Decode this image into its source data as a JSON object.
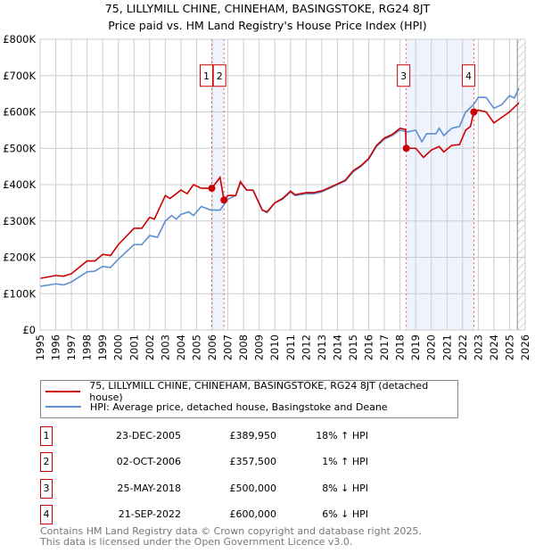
{
  "header": {
    "title": "75, LILLYMILL CHINE, CHINEHAM, BASINGSTOKE, RG24 8JT",
    "subtitle": "Price paid vs. HM Land Registry's House Price Index (HPI)"
  },
  "chart_data": {
    "type": "line",
    "title": "75, LILLYMILL CHINE, CHINEHAM, BASINGSTOKE, RG24 8JT",
    "subtitle": "Price paid vs. HM Land Registry's House Price Index (HPI)",
    "xlim": [
      1995,
      2026
    ],
    "ylim": [
      0,
      800000
    ],
    "y_ticks": [
      {
        "v": 0,
        "label": "£0"
      },
      {
        "v": 100000,
        "label": "£100K"
      },
      {
        "v": 200000,
        "label": "£200K"
      },
      {
        "v": 300000,
        "label": "£300K"
      },
      {
        "v": 400000,
        "label": "£400K"
      },
      {
        "v": 500000,
        "label": "£500K"
      },
      {
        "v": 600000,
        "label": "£600K"
      },
      {
        "v": 700000,
        "label": "£700K"
      },
      {
        "v": 800000,
        "label": "£800K"
      }
    ],
    "x_ticks": [
      "1995",
      "1996",
      "1997",
      "1998",
      "1999",
      "2000",
      "2001",
      "2002",
      "2003",
      "2004",
      "2005",
      "2006",
      "2007",
      "2008",
      "2009",
      "2010",
      "2011",
      "2012",
      "2013",
      "2014",
      "2015",
      "2016",
      "2017",
      "2018",
      "2019",
      "2020",
      "2021",
      "2022",
      "2023",
      "2024",
      "2025",
      "2026"
    ],
    "grid": true,
    "shaded_ranges": [
      [
        2005.97,
        2006.75
      ],
      [
        2018.4,
        2022.72
      ]
    ],
    "forecast_from": 2025.5,
    "series": [
      {
        "name": "75, LILLYMILL CHINE, CHINEHAM, BASINGSTOKE, RG24 8JT (detached house)",
        "color": "#cc0000",
        "points": [
          [
            1995,
            142
          ],
          [
            1996,
            150
          ],
          [
            1996.5,
            148
          ],
          [
            1997,
            155
          ],
          [
            1998,
            190
          ],
          [
            1998.5,
            190
          ],
          [
            1999,
            208
          ],
          [
            1999.5,
            205
          ],
          [
            2000,
            235
          ],
          [
            2001,
            280
          ],
          [
            2001.5,
            280
          ],
          [
            2002,
            310
          ],
          [
            2002.3,
            305
          ],
          [
            2003,
            370
          ],
          [
            2003.3,
            362
          ],
          [
            2004,
            385
          ],
          [
            2004.4,
            375
          ],
          [
            2004.8,
            400
          ],
          [
            2005.3,
            390
          ],
          [
            2005.97,
            390
          ],
          [
            2006.5,
            420
          ],
          [
            2006.75,
            357.5
          ],
          [
            2007,
            370
          ],
          [
            2007.5,
            370
          ],
          [
            2007.8,
            408
          ],
          [
            2008.2,
            385
          ],
          [
            2008.6,
            385
          ],
          [
            2009.2,
            330
          ],
          [
            2009.5,
            325
          ],
          [
            2010,
            350
          ],
          [
            2010.5,
            362
          ],
          [
            2011,
            382
          ],
          [
            2011.3,
            372
          ],
          [
            2012,
            378
          ],
          [
            2012.5,
            378
          ],
          [
            2013,
            383
          ],
          [
            2013.5,
            392
          ],
          [
            2014,
            402
          ],
          [
            2014.5,
            412
          ],
          [
            2015,
            438
          ],
          [
            2015.5,
            452
          ],
          [
            2016,
            472
          ],
          [
            2016.5,
            508
          ],
          [
            2017,
            528
          ],
          [
            2017.5,
            538
          ],
          [
            2018,
            555
          ],
          [
            2018.35,
            552
          ],
          [
            2018.4,
            500
          ],
          [
            2019,
            500
          ],
          [
            2019.5,
            475
          ],
          [
            2020,
            495
          ],
          [
            2020.5,
            505
          ],
          [
            2020.8,
            490
          ],
          [
            2021.3,
            508
          ],
          [
            2021.8,
            510
          ],
          [
            2022.2,
            550
          ],
          [
            2022.5,
            560
          ],
          [
            2022.72,
            600
          ],
          [
            2023,
            605
          ],
          [
            2023.5,
            600
          ],
          [
            2024,
            570
          ],
          [
            2024.5,
            585
          ],
          [
            2025,
            600
          ],
          [
            2025.6,
            625
          ]
        ]
      },
      {
        "name": "HPI: Average price, detached house, Basingstoke and Deane",
        "color": "#5b8fd0",
        "points": [
          [
            1995,
            120
          ],
          [
            1996,
            127
          ],
          [
            1996.5,
            124
          ],
          [
            1997,
            132
          ],
          [
            1998,
            160
          ],
          [
            1998.5,
            162
          ],
          [
            1999,
            175
          ],
          [
            1999.5,
            172
          ],
          [
            2000,
            195
          ],
          [
            2001,
            235
          ],
          [
            2001.5,
            235
          ],
          [
            2002,
            260
          ],
          [
            2002.5,
            255
          ],
          [
            2003,
            300
          ],
          [
            2003.4,
            315
          ],
          [
            2003.7,
            305
          ],
          [
            2004,
            318
          ],
          [
            2004.5,
            325
          ],
          [
            2004.8,
            315
          ],
          [
            2005.3,
            340
          ],
          [
            2005.9,
            330
          ],
          [
            2006.5,
            330
          ],
          [
            2007,
            360
          ],
          [
            2007.5,
            370
          ],
          [
            2007.8,
            405
          ],
          [
            2008.2,
            385
          ],
          [
            2008.6,
            385
          ],
          [
            2009.2,
            330
          ],
          [
            2009.5,
            323
          ],
          [
            2010,
            350
          ],
          [
            2010.5,
            360
          ],
          [
            2011,
            380
          ],
          [
            2011.3,
            370
          ],
          [
            2012,
            375
          ],
          [
            2012.5,
            375
          ],
          [
            2013,
            380
          ],
          [
            2013.5,
            390
          ],
          [
            2014,
            400
          ],
          [
            2014.5,
            410
          ],
          [
            2015,
            435
          ],
          [
            2015.5,
            450
          ],
          [
            2016,
            470
          ],
          [
            2016.5,
            505
          ],
          [
            2017,
            525
          ],
          [
            2017.5,
            535
          ],
          [
            2018,
            550
          ],
          [
            2018.5,
            545
          ],
          [
            2019,
            550
          ],
          [
            2019.4,
            518
          ],
          [
            2019.7,
            540
          ],
          [
            2020.3,
            540
          ],
          [
            2020.5,
            555
          ],
          [
            2020.8,
            535
          ],
          [
            2021.3,
            555
          ],
          [
            2021.8,
            560
          ],
          [
            2022.2,
            600
          ],
          [
            2022.7,
            620
          ],
          [
            2023,
            640
          ],
          [
            2023.5,
            640
          ],
          [
            2024,
            610
          ],
          [
            2024.5,
            620
          ],
          [
            2025,
            645
          ],
          [
            2025.3,
            638
          ],
          [
            2025.6,
            665
          ]
        ]
      }
    ],
    "markers": [
      {
        "label": "1",
        "x": 2005.97,
        "y": 389950
      },
      {
        "label": "2",
        "x": 2006.75,
        "y": 357500
      },
      {
        "label": "3",
        "x": 2018.4,
        "y": 500000
      },
      {
        "label": "4",
        "x": 2022.72,
        "y": 600000
      }
    ],
    "marker_label_y": 700000
  },
  "legend": {
    "items": [
      {
        "label": "75, LILLYMILL CHINE, CHINEHAM, BASINGSTOKE, RG24 8JT (detached house)",
        "color": "#cc0000"
      },
      {
        "label": "HPI: Average price, detached house, Basingstoke and Deane",
        "color": "#5b8fd0"
      }
    ]
  },
  "transactions": [
    {
      "num": "1",
      "date": "23-DEC-2005",
      "price": "£389,950",
      "hpi": "18% ↑ HPI"
    },
    {
      "num": "2",
      "date": "02-OCT-2006",
      "price": "£357,500",
      "hpi": "1% ↑ HPI"
    },
    {
      "num": "3",
      "date": "25-MAY-2018",
      "price": "£500,000",
      "hpi": "8% ↓ HPI"
    },
    {
      "num": "4",
      "date": "21-SEP-2022",
      "price": "£600,000",
      "hpi": "6% ↓ HPI"
    }
  ],
  "footer": {
    "line1": "Contains HM Land Registry data © Crown copyright and database right 2025.",
    "line2": "This data is licensed under the Open Government Licence v3.0."
  }
}
